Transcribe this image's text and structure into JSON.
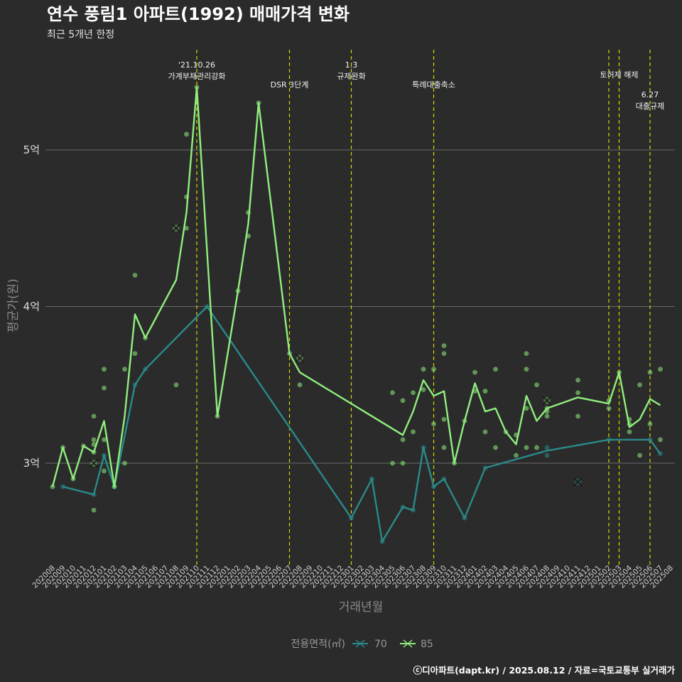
{
  "chart_data": {
    "type": "line",
    "title": "연수 풍림1 아파트(1992) 매매가격 변화",
    "subtitle": "최근 5개년 한정",
    "xlabel": "거래년월",
    "ylabel": "평균가(원)",
    "caption": "ⓒ디아파트(dapt.kr) / 2025.08.12 / 자료=국토교통부 실거래가",
    "legend": {
      "title": "전용면적(㎡)",
      "position": "bottom"
    },
    "categories": [
      "202008",
      "202009",
      "202010",
      "202011",
      "202012",
      "202101",
      "202102",
      "202103",
      "202104",
      "202105",
      "202106",
      "202107",
      "202108",
      "202109",
      "202110",
      "202111",
      "202112",
      "202201",
      "202202",
      "202203",
      "202204",
      "202205",
      "202206",
      "202207",
      "202208",
      "202209",
      "202210",
      "202211",
      "202212",
      "202301",
      "202302",
      "202303",
      "202304",
      "202305",
      "202306",
      "202307",
      "202308",
      "202309",
      "202310",
      "202311",
      "202312",
      "202401",
      "202402",
      "202403",
      "202404",
      "202405",
      "202406",
      "202407",
      "202408",
      "202409",
      "202410",
      "202411",
      "202412",
      "202501",
      "202502",
      "202503",
      "202504",
      "202505",
      "202506",
      "202507",
      "202508"
    ],
    "yticks": [
      {
        "value": 3.0,
        "label": "3억"
      },
      {
        "value": 4.0,
        "label": "4억"
      },
      {
        "value": 5.0,
        "label": "5억"
      }
    ],
    "ylim": [
      2.37,
      5.45
    ],
    "grid": true,
    "series": [
      {
        "name": "70",
        "color": "#2a8a8a",
        "line": [
          [
            "202009",
            2.85
          ],
          [
            "202012",
            2.8
          ],
          [
            "202101",
            3.05
          ],
          [
            "202102",
            2.85
          ],
          [
            "202104",
            3.5
          ],
          [
            "202105",
            3.6
          ],
          [
            "202111",
            4.0
          ],
          [
            "202301",
            2.65
          ],
          [
            "202303",
            2.9
          ],
          [
            "202304",
            2.5
          ],
          [
            "202306",
            2.72
          ],
          [
            "202307",
            2.7
          ],
          [
            "202308",
            3.1
          ],
          [
            "202309",
            2.85
          ],
          [
            "202310",
            2.9
          ],
          [
            "202312",
            2.65
          ],
          [
            "202402",
            2.97
          ],
          [
            "202408",
            3.08
          ],
          [
            "202502",
            3.15
          ],
          [
            "202506",
            3.15
          ],
          [
            "202507",
            3.06
          ]
        ],
        "points": [
          [
            "202009",
            2.85
          ],
          [
            "202012",
            2.8
          ],
          [
            "202101",
            3.05
          ],
          [
            "202102",
            2.85
          ],
          [
            "202104",
            3.5
          ],
          [
            "202105",
            3.6
          ],
          [
            "202111",
            4.0
          ],
          [
            "202301",
            2.65
          ],
          [
            "202303",
            2.9
          ],
          [
            "202304",
            2.5
          ],
          [
            "202306",
            2.72
          ],
          [
            "202307",
            2.7
          ],
          [
            "202308",
            3.1
          ],
          [
            "202309",
            2.85
          ],
          [
            "202310",
            2.9
          ],
          [
            "202312",
            2.65
          ],
          [
            "202402",
            2.97
          ],
          [
            "202408",
            3.05
          ],
          [
            "202408",
            3.1
          ],
          [
            "202502",
            3.15
          ],
          [
            "202506",
            3.15
          ],
          [
            "202507",
            3.06
          ]
        ],
        "markers": [
          [
            "202411",
            2.88
          ]
        ]
      },
      {
        "name": "85",
        "color": "#90ee7e",
        "line": [
          [
            "202008",
            2.85
          ],
          [
            "202009",
            3.1
          ],
          [
            "202010",
            2.9
          ],
          [
            "202011",
            3.11
          ],
          [
            "202012",
            3.07
          ],
          [
            "202101",
            3.27
          ],
          [
            "202102",
            2.85
          ],
          [
            "202103",
            3.3
          ],
          [
            "202104",
            3.95
          ],
          [
            "202105",
            3.8
          ],
          [
            "202108",
            4.17
          ],
          [
            "202109",
            4.6
          ],
          [
            "202110",
            5.4
          ],
          [
            "202112",
            3.3
          ],
          [
            "202202",
            4.1
          ],
          [
            "202203",
            4.53
          ],
          [
            "202204",
            5.3
          ],
          [
            "202207",
            3.7
          ],
          [
            "202208",
            3.58
          ],
          [
            "202306",
            3.18
          ],
          [
            "202307",
            3.33
          ],
          [
            "202308",
            3.53
          ],
          [
            "202309",
            3.43
          ],
          [
            "202310",
            3.46
          ],
          [
            "202311",
            3.0
          ],
          [
            "202312",
            3.27
          ],
          [
            "202401",
            3.51
          ],
          [
            "202402",
            3.33
          ],
          [
            "202403",
            3.35
          ],
          [
            "202404",
            3.2
          ],
          [
            "202405",
            3.12
          ],
          [
            "202406",
            3.43
          ],
          [
            "202407",
            3.27
          ],
          [
            "202408",
            3.35
          ],
          [
            "202411",
            3.42
          ],
          [
            "202502",
            3.38
          ],
          [
            "202503",
            3.58
          ],
          [
            "202504",
            3.23
          ],
          [
            "202505",
            3.28
          ],
          [
            "202506",
            3.41
          ],
          [
            "202507",
            3.37
          ]
        ],
        "points": [
          [
            "202008",
            2.85
          ],
          [
            "202009",
            3.1
          ],
          [
            "202010",
            2.9
          ],
          [
            "202011",
            3.11
          ],
          [
            "202012",
            2.7
          ],
          [
            "202012",
            3.07
          ],
          [
            "202012",
            3.12
          ],
          [
            "202012",
            3.15
          ],
          [
            "202012",
            3.3
          ],
          [
            "202101",
            3.15
          ],
          [
            "202101",
            2.95
          ],
          [
            "202101",
            3.48
          ],
          [
            "202101",
            3.6
          ],
          [
            "202102",
            2.85
          ],
          [
            "202103",
            3.0
          ],
          [
            "202103",
            3.6
          ],
          [
            "202104",
            3.7
          ],
          [
            "202104",
            4.2
          ],
          [
            "202105",
            3.8
          ],
          [
            "202108",
            3.5
          ],
          [
            "202109",
            4.5
          ],
          [
            "202109",
            4.7
          ],
          [
            "202109",
            5.1
          ],
          [
            "202110",
            5.4
          ],
          [
            "202112",
            3.3
          ],
          [
            "202202",
            4.1
          ],
          [
            "202203",
            4.45
          ],
          [
            "202203",
            4.6
          ],
          [
            "202204",
            5.3
          ],
          [
            "202207",
            3.7
          ],
          [
            "202208",
            3.5
          ],
          [
            "202305",
            3.0
          ],
          [
            "202305",
            3.45
          ],
          [
            "202306",
            3.0
          ],
          [
            "202306",
            3.15
          ],
          [
            "202306",
            3.4
          ],
          [
            "202307",
            3.2
          ],
          [
            "202307",
            3.45
          ],
          [
            "202308",
            3.47
          ],
          [
            "202308",
            3.6
          ],
          [
            "202309",
            3.25
          ],
          [
            "202309",
            3.6
          ],
          [
            "202310",
            3.1
          ],
          [
            "202310",
            3.28
          ],
          [
            "202310",
            3.7
          ],
          [
            "202310",
            3.75
          ],
          [
            "202311",
            3.0
          ],
          [
            "202312",
            3.27
          ],
          [
            "202401",
            3.46
          ],
          [
            "202401",
            3.58
          ],
          [
            "202402",
            3.2
          ],
          [
            "202402",
            3.46
          ],
          [
            "202403",
            3.1
          ],
          [
            "202403",
            3.6
          ],
          [
            "202404",
            3.2
          ],
          [
            "202405",
            3.05
          ],
          [
            "202405",
            3.18
          ],
          [
            "202406",
            3.1
          ],
          [
            "202406",
            3.35
          ],
          [
            "202406",
            3.6
          ],
          [
            "202406",
            3.7
          ],
          [
            "202407",
            3.1
          ],
          [
            "202407",
            3.5
          ],
          [
            "202408",
            3.3
          ],
          [
            "202408",
            3.33
          ],
          [
            "202408",
            3.35
          ],
          [
            "202411",
            3.3
          ],
          [
            "202411",
            3.45
          ],
          [
            "202411",
            3.53
          ],
          [
            "202502",
            3.35
          ],
          [
            "202502",
            3.4
          ],
          [
            "202503",
            3.58
          ],
          [
            "202504",
            3.2
          ],
          [
            "202504",
            3.25
          ],
          [
            "202504",
            3.28
          ],
          [
            "202505",
            3.05
          ],
          [
            "202505",
            3.5
          ],
          [
            "202506",
            3.25
          ],
          [
            "202506",
            3.58
          ],
          [
            "202507",
            3.15
          ],
          [
            "202507",
            3.6
          ]
        ],
        "markers": [
          [
            "202012",
            3.0
          ],
          [
            "202108",
            4.5
          ],
          [
            "202208",
            3.67
          ],
          [
            "202408",
            3.4
          ]
        ]
      }
    ],
    "annotations": [
      {
        "x": "202110",
        "lines": [
          "'21.10.26",
          "가계부채관리강화"
        ],
        "align": "center",
        "row": 0
      },
      {
        "x": "202207",
        "lines": [
          "DSR 3단계"
        ],
        "align": "center",
        "row": 1
      },
      {
        "x": "202301",
        "lines": [
          "1.3",
          "규제완화"
        ],
        "align": "center",
        "row": 0
      },
      {
        "x": "202309",
        "lines": [
          "특례대출축소"
        ],
        "align": "center",
        "row": 1
      },
      {
        "x": "202502",
        "lines": [],
        "align": "center",
        "row": 0
      },
      {
        "x": "202503",
        "lines": [
          "토허제 해제"
        ],
        "align": "center",
        "row": 0.5
      },
      {
        "x": "202506",
        "lines": [
          "6.27",
          "대출규제"
        ],
        "align": "center",
        "row": 1.5
      }
    ]
  }
}
